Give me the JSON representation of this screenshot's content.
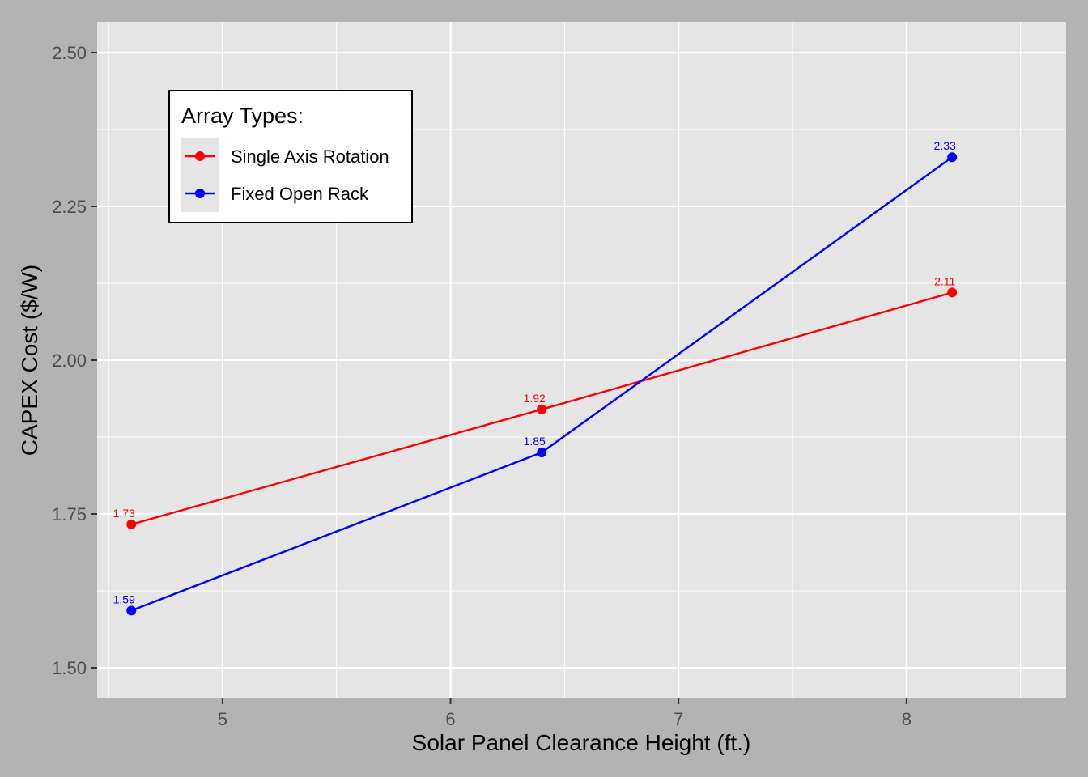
{
  "chart_data": {
    "type": "line",
    "title": "",
    "xlabel": "Solar Panel Clearance Height (ft.)",
    "ylabel": "CAPEX Cost ($/W)",
    "xlim": [
      4.45,
      8.7
    ],
    "ylim": [
      1.45,
      2.55
    ],
    "x_ticks": [
      {
        "value": 5,
        "label": "5"
      },
      {
        "value": 6,
        "label": "6"
      },
      {
        "value": 7,
        "label": "7"
      },
      {
        "value": 8,
        "label": "8"
      }
    ],
    "y_ticks": [
      {
        "value": 1.5,
        "label": "1.50"
      },
      {
        "value": 1.75,
        "label": "1.75"
      },
      {
        "value": 2.0,
        "label": "2.00"
      },
      {
        "value": 2.25,
        "label": "2.25"
      },
      {
        "value": 2.5,
        "label": "2.50"
      }
    ],
    "grid": true,
    "legend": {
      "title": "Array Types:",
      "placement": "top-left"
    },
    "series": [
      {
        "name": "Single Axis Rotation",
        "color": "#ff0000",
        "x": [
          4.6,
          6.4,
          8.2
        ],
        "y": [
          1.733,
          1.92,
          2.11
        ],
        "labels": [
          "1.73",
          "1.92",
          "2.11"
        ]
      },
      {
        "name": "Fixed Open Rack",
        "color": "#0000ff",
        "x": [
          4.6,
          6.4,
          8.2
        ],
        "y": [
          1.593,
          1.85,
          2.33
        ],
        "labels": [
          "1.59",
          "1.85",
          "2.33"
        ]
      }
    ]
  },
  "colors": {
    "page_background": "#b3b3b3",
    "panel_background": "#e5e5e5",
    "grid": "#ffffff",
    "axis_text": "#4d4d4d",
    "title_text": "#000000"
  }
}
